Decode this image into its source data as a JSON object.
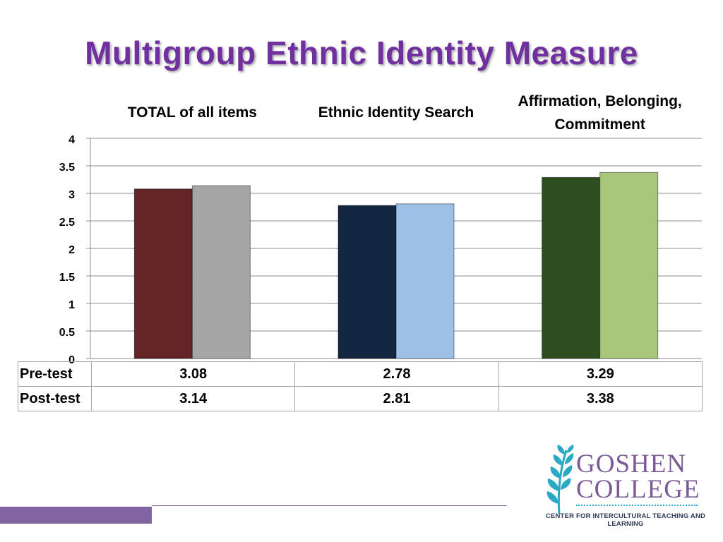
{
  "slide": {
    "title": "Multigroup Ethnic Identity Measure"
  },
  "chart_data": {
    "type": "bar",
    "categories": [
      "TOTAL of all items",
      "Ethnic Identity Search",
      "Affirmation, Belonging, Commitment"
    ],
    "category_lines": [
      [
        "TOTAL of all items"
      ],
      [
        "Ethnic Identity Search"
      ],
      [
        "Affirmation, Belonging,",
        "Commitment"
      ]
    ],
    "series": [
      {
        "name": "Pre-test",
        "values": [
          3.08,
          2.78,
          3.29
        ]
      },
      {
        "name": "Post-test",
        "values": [
          3.14,
          2.81,
          3.38
        ]
      }
    ],
    "bar_colors": [
      [
        "#622426",
        "#a5a5a5"
      ],
      [
        "#13263f",
        "#9dc0e6"
      ],
      [
        "#2e4e20",
        "#a8c57a"
      ]
    ],
    "ylim": [
      0,
      4
    ],
    "yticks": [
      "0",
      "0.5",
      "1",
      "1.5",
      "2",
      "2.5",
      "3",
      "3.5",
      "4"
    ],
    "grid": true,
    "table": {
      "rows": [
        {
          "label": "Pre-test",
          "values": [
            "3.08",
            "2.78",
            "3.29"
          ]
        },
        {
          "label": "Post-test",
          "values": [
            "3.14",
            "2.81",
            "3.38"
          ]
        }
      ]
    }
  },
  "logo": {
    "name_line1": "GOSHEN",
    "name_line2": "COLLEGE",
    "subtitle": "CENTER FOR INTERCULTURAL TEACHING AND LEARNING",
    "colors": {
      "name": "#7b5a96",
      "leaf": "#2aa8c4",
      "subtitle": "#2f3a57"
    }
  },
  "theme": {
    "title_color": "#7030a0",
    "accent_bar": "#8064a2",
    "gridline": "#8c8c8c"
  }
}
